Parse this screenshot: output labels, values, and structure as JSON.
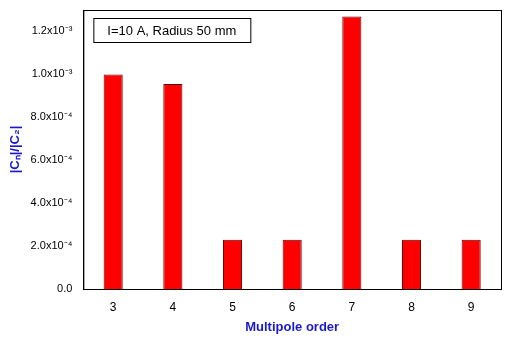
{
  "chart_data": {
    "type": "bar",
    "annotations": [
      "I=10 A, Radius 50 mm"
    ],
    "x_label": "Multipole order",
    "y_label": "|Cₙ|/|C₂|",
    "categories": [
      "3",
      "4",
      "5",
      "6",
      "7",
      "8",
      "9"
    ],
    "values": [
      0.001,
      0.000955,
      0.00023,
      0.00023,
      0.00127,
      0.00023,
      0.00023
    ],
    "color": "#ff0000",
    "ylim": [
      0,
      0.0013
    ],
    "yticks": [
      {
        "value": 0,
        "label": "0.0"
      },
      {
        "value": 0.0002,
        "label": "2.0x10⁻⁴"
      },
      {
        "value": 0.0004,
        "label": "4.0x10⁻⁴"
      },
      {
        "value": 0.0006,
        "label": "6.0x10⁻⁴"
      },
      {
        "value": 0.0008,
        "label": "8.0x10⁻⁴"
      },
      {
        "value": 0.001,
        "label": "1.0x10⁻³"
      },
      {
        "value": 0.0012,
        "label": "1.2x10⁻³"
      }
    ],
    "grid": false
  }
}
